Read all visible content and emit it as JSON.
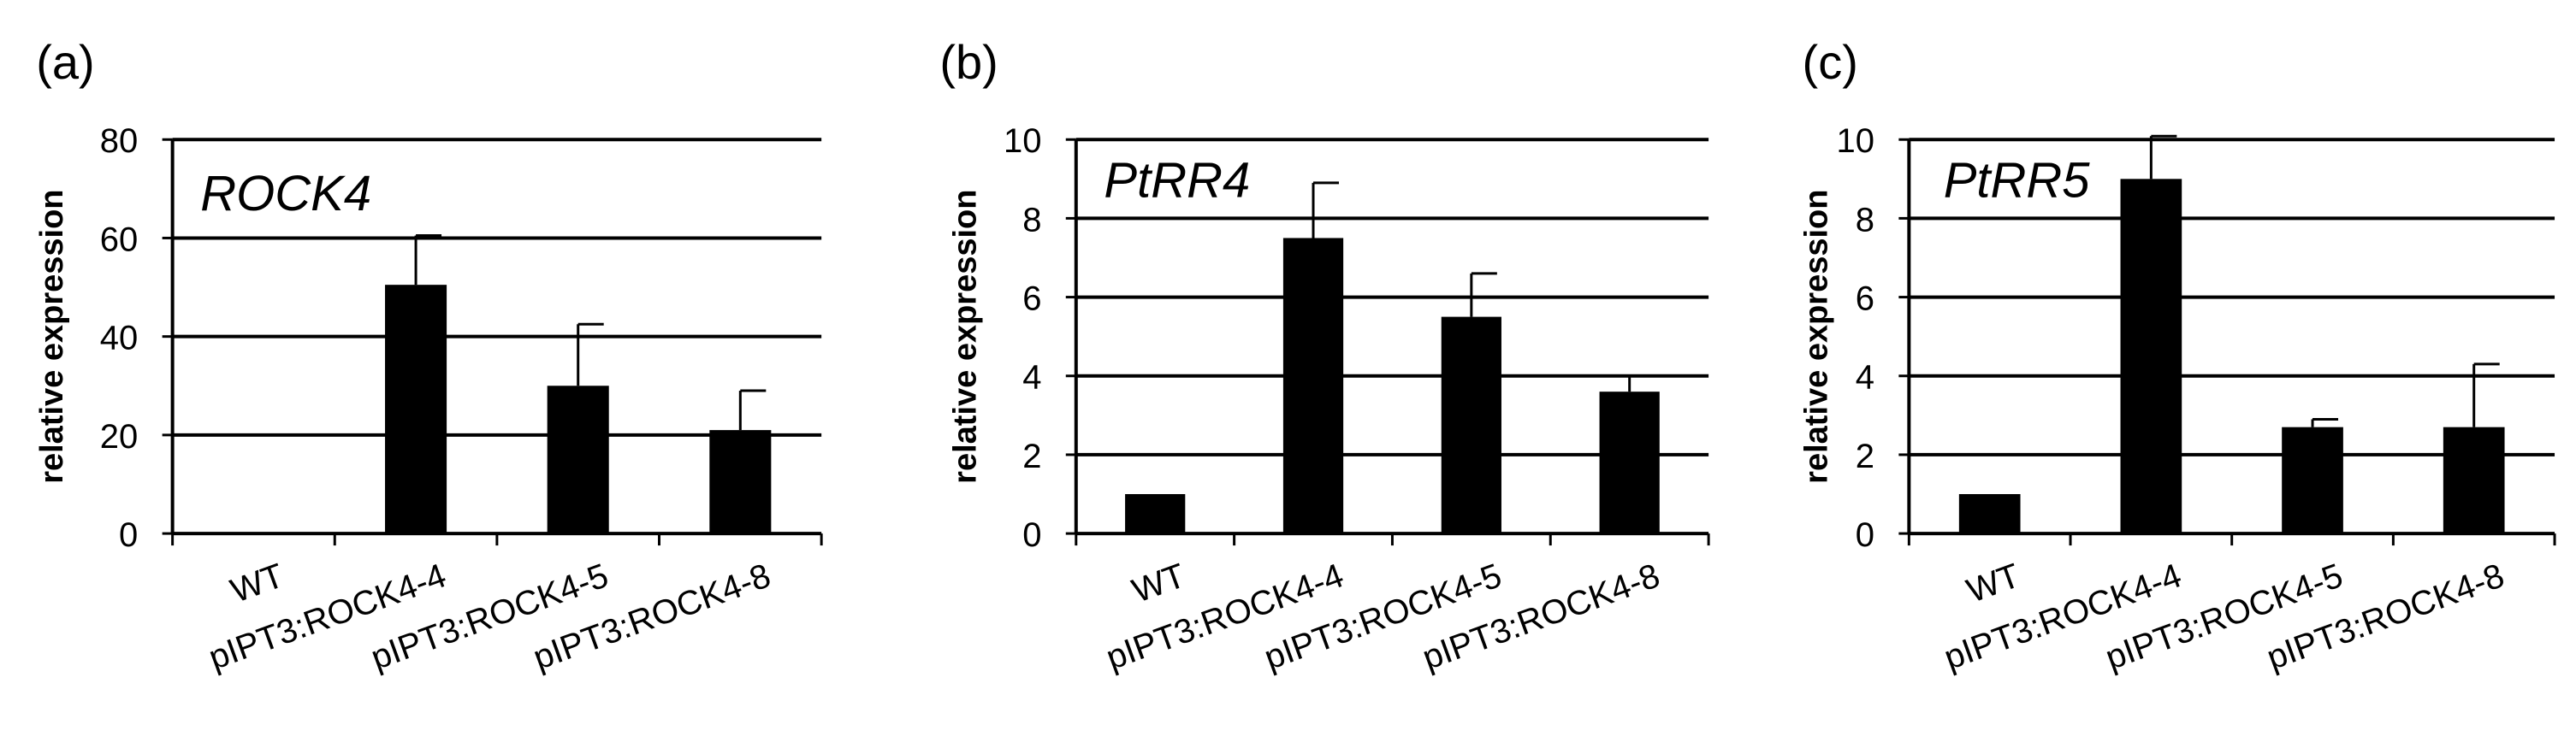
{
  "figure": {
    "colors": {
      "bar": "#000000",
      "axis": "#000000",
      "grid": "#000000",
      "background": "#ffffff"
    }
  },
  "chart_data": [
    {
      "type": "bar",
      "panel_label": "(a)",
      "title": "ROCK4",
      "ylabel": "relative expression",
      "xlabel": "",
      "ylim": [
        0,
        80
      ],
      "yticks": [
        0,
        20,
        40,
        60,
        80
      ],
      "grid": true,
      "categories": [
        "WT",
        "pIPT3:ROCK4-4",
        "pIPT3:ROCK4-5",
        "pIPT3:ROCK4-8"
      ],
      "values": [
        0,
        50.5,
        30,
        21
      ],
      "errors": [
        0,
        10,
        12.5,
        8
      ]
    },
    {
      "type": "bar",
      "panel_label": "(b)",
      "title": "PtRR4",
      "ylabel": "relative expression",
      "xlabel": "",
      "ylim": [
        0,
        10
      ],
      "yticks": [
        0,
        2,
        4,
        6,
        8,
        10
      ],
      "grid": true,
      "categories": [
        "WT",
        "pIPT3:ROCK4-4",
        "pIPT3:ROCK4-5",
        "pIPT3:ROCK4-8"
      ],
      "values": [
        1,
        7.5,
        5.5,
        3.6
      ],
      "errors": [
        0,
        1.4,
        1.1,
        0.4
      ]
    },
    {
      "type": "bar",
      "panel_label": "(c)",
      "title": "PtRR5",
      "ylabel": "relative expression",
      "xlabel": "",
      "ylim": [
        0,
        10
      ],
      "yticks": [
        0,
        2,
        4,
        6,
        8,
        10
      ],
      "grid": true,
      "categories": [
        "WT",
        "pIPT3:ROCK4-4",
        "pIPT3:ROCK4-5",
        "pIPT3:ROCK4-8"
      ],
      "values": [
        1,
        9,
        2.7,
        2.7
      ],
      "errors": [
        0,
        1.5,
        0.2,
        1.6
      ]
    }
  ]
}
